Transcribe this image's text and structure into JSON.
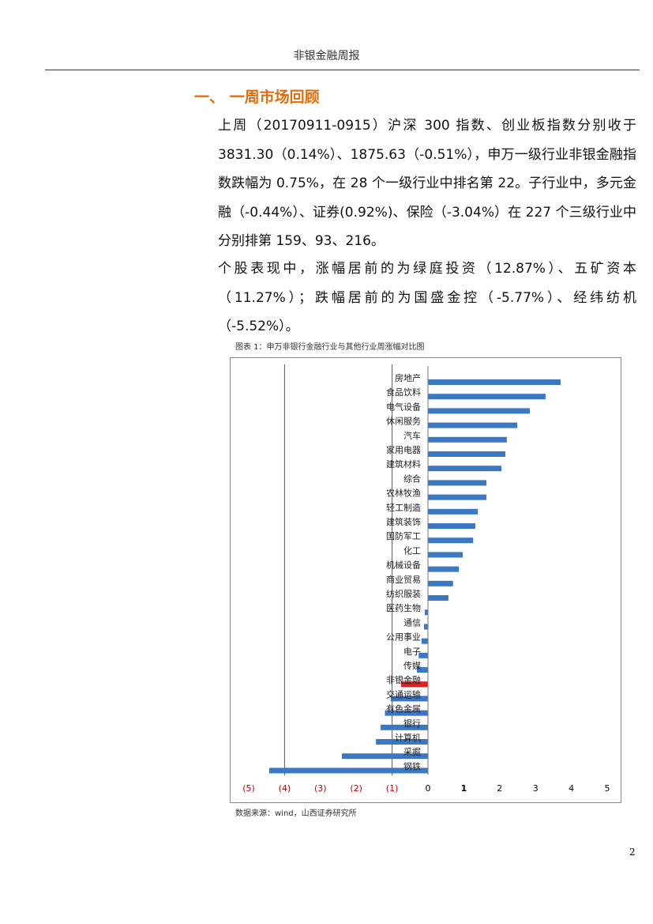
{
  "header": {
    "title": "非银金融周报"
  },
  "section": {
    "heading": "一、 一周市场回顾",
    "paragraphs": [
      "上周（20170911-0915）沪深 300 指数、创业板指数分别收于 3831.30（0.14%）、1875.63（-0.51%），申万一级行业非银金融指数跌幅为 0.75%，在 28 个一级行业中排名第 22。子行业中，多元金融（-0.44%）、证券(0.92%)、保险（-3.04%）在 227 个三级行业中分别排第 159、93、216。",
      "个股表现中，涨幅居前的为绿庭投资（12.87%）、五矿资本（11.27%）；跌幅居前的为国盛金控（-5.77%）、经纬纺机（-5.52%）。"
    ]
  },
  "figure": {
    "caption": "图表 1：申万非银行金融行业与其他行业周涨幅对比图",
    "source": "数据来源：wind，山西证券研究所"
  },
  "page_number": "2",
  "chart_data": {
    "type": "bar",
    "orientation": "horizontal",
    "categories": [
      "房地产",
      "食品饮料",
      "电气设备",
      "休闲服务",
      "汽车",
      "家用电器",
      "建筑材料",
      "综合",
      "农林牧渔",
      "轻工制造",
      "建筑装饰",
      "国防军工",
      "化工",
      "机械设备",
      "商业贸易",
      "纺织服装",
      "医药生物",
      "通信",
      "公用事业",
      "电子",
      "传媒",
      "非银金融",
      "交通运输",
      "有色金属",
      "银行",
      "计算机",
      "采掘",
      "钢铁"
    ],
    "values": [
      3.7,
      3.28,
      2.84,
      2.49,
      2.2,
      2.16,
      2.05,
      1.63,
      1.63,
      1.39,
      1.32,
      1.26,
      0.97,
      0.86,
      0.7,
      0.57,
      -0.09,
      -0.11,
      -0.18,
      -0.26,
      -0.31,
      -0.75,
      -1.04,
      -1.2,
      -1.32,
      -1.45,
      -2.4,
      -4.43
    ],
    "colors": [
      "#3a78c3",
      "#3a78c3",
      "#3a78c3",
      "#3a78c3",
      "#3a78c3",
      "#3a78c3",
      "#3a78c3",
      "#3a78c3",
      "#3a78c3",
      "#3a78c3",
      "#3a78c3",
      "#3a78c3",
      "#3a78c3",
      "#3a78c3",
      "#3a78c3",
      "#3a78c3",
      "#3a78c3",
      "#3a78c3",
      "#3a78c3",
      "#3a78c3",
      "#3a78c3",
      "#e02020",
      "#3a78c3",
      "#3a78c3",
      "#3a78c3",
      "#3a78c3",
      "#3a78c3",
      "#3a78c3"
    ],
    "xlim": [
      -5,
      5
    ],
    "xticks": [
      {
        "value": -5,
        "label": "(5)"
      },
      {
        "value": -4,
        "label": "(4)"
      },
      {
        "value": -3,
        "label": "(3)"
      },
      {
        "value": -2,
        "label": "(2)"
      },
      {
        "value": -1,
        "label": "(1)"
      },
      0,
      1,
      2,
      3,
      4,
      5
    ],
    "negative_tick_color": "#c00000",
    "gridlines": [
      -4,
      -1
    ]
  }
}
